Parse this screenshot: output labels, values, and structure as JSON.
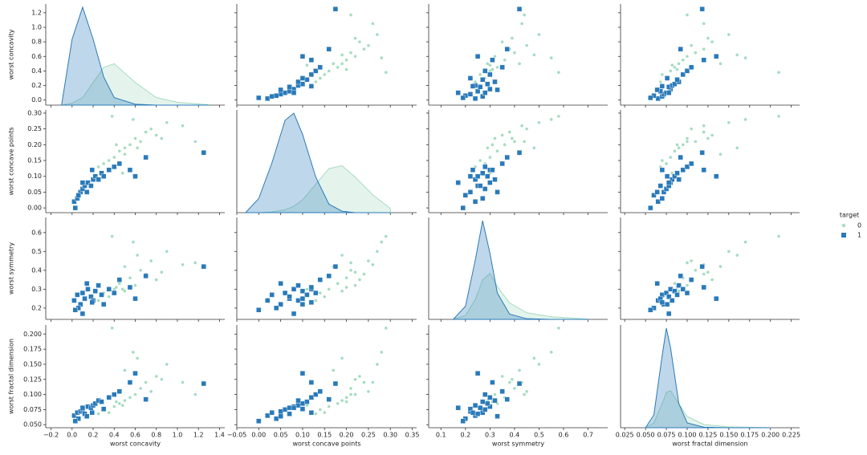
{
  "chart_data": {
    "type": "pairplot",
    "legend_title": "target",
    "legend_position": "right",
    "variables": [
      {
        "name": "worst concavity",
        "lim": [
          -0.25,
          1.45
        ],
        "ticks": [
          {
            "value": -0.2,
            "label": "−0.2"
          },
          {
            "value": 0,
            "label": "0.0"
          },
          0.2,
          0.4,
          0.6,
          0.8,
          {
            "value": 1,
            "label": "1.0"
          },
          1.2,
          1.4
        ],
        "yticks": [
          {
            "value": 0,
            "label": "0.0"
          },
          0.2,
          0.4,
          0.6,
          0.8,
          {
            "value": 1,
            "label": "1.0"
          },
          1.2
        ],
        "ylim": [
          -0.07,
          1.32
        ],
        "kde_x": [
          -0.1,
          0.0,
          0.1,
          0.2,
          0.3,
          0.4,
          0.6,
          0.8,
          1.0,
          1.3
        ]
      },
      {
        "name": "worst concave points",
        "lim": [
          -0.05,
          0.36
        ],
        "ticks": [
          {
            "value": -0.05,
            "label": "−0.05"
          },
          {
            "value": 0,
            "label": "0.00"
          },
          0.05,
          {
            "value": 0.1,
            "label": "0.10"
          },
          0.15,
          {
            "value": 0.2,
            "label": "0.20"
          },
          0.25,
          {
            "value": 0.3,
            "label": "0.30"
          },
          0.35
        ],
        "yticks": [
          {
            "value": 0,
            "label": "0.00"
          },
          0.05,
          {
            "value": 0.1,
            "label": "0.10"
          },
          0.15,
          {
            "value": 0.2,
            "label": "0.20"
          },
          0.25,
          {
            "value": 0.3,
            "label": "0.30"
          }
        ],
        "ylim": [
          -0.015,
          0.31
        ],
        "kde_x": [
          -0.03,
          0,
          0.03,
          0.06,
          0.08,
          0.1,
          0.13,
          0.16,
          0.19,
          0.22,
          0.26,
          0.3
        ]
      },
      {
        "name": "worst symmetry",
        "lim": [
          0.05,
          0.78
        ],
        "ticks": [
          0.1,
          0.2,
          0.3,
          0.4,
          0.5,
          0.6,
          0.7
        ],
        "yticks": [
          0.2,
          0.3,
          0.4,
          0.5,
          0.6
        ],
        "ylim": [
          0.14,
          0.68
        ],
        "kde_x": [
          0.15,
          0.2,
          0.24,
          0.27,
          0.3,
          0.33,
          0.38,
          0.45,
          0.55,
          0.7
        ]
      },
      {
        "name": "worst fractal dimension",
        "lim": [
          0.02,
          0.235
        ],
        "ticks": [
          0.025,
          {
            "value": 0.05,
            "label": "0.050"
          },
          0.075,
          {
            "value": 0.1,
            "label": "0.100"
          },
          0.125,
          {
            "value": 0.15,
            "label": "0.150"
          },
          0.175,
          {
            "value": 0.2,
            "label": "0.200"
          },
          0.225
        ],
        "yticks": [
          {
            "value": 0.05,
            "label": "0.050"
          },
          0.075,
          {
            "value": 0.1,
            "label": "0.100"
          },
          0.125,
          {
            "value": 0.15,
            "label": "0.150"
          },
          0.175,
          {
            "value": 0.2,
            "label": "0.200"
          }
        ],
        "ylim": [
          0.045,
          0.215
        ],
        "kde_x": [
          0.05,
          0.06,
          0.07,
          0.075,
          0.08,
          0.09,
          0.1,
          0.12,
          0.15,
          0.2
        ]
      }
    ],
    "series": [
      {
        "name": "0",
        "color": "#a6dcc0",
        "marker": "dot",
        "values": [
          [
            0.3,
            0.14,
            0.28,
            0.075
          ],
          [
            0.4,
            0.16,
            0.3,
            0.08
          ],
          [
            0.45,
            0.18,
            0.33,
            0.085
          ],
          [
            0.5,
            0.19,
            0.29,
            0.09
          ],
          [
            0.55,
            0.2,
            0.36,
            0.095
          ],
          [
            0.6,
            0.22,
            0.32,
            0.1
          ],
          [
            0.65,
            0.21,
            0.4,
            0.11
          ],
          [
            0.7,
            0.24,
            0.38,
            0.12
          ],
          [
            0.75,
            0.25,
            0.45,
            0.105
          ],
          [
            0.8,
            0.23,
            0.35,
            0.13
          ],
          [
            0.35,
            0.15,
            0.26,
            0.07
          ],
          [
            0.5,
            0.17,
            0.42,
            0.14
          ],
          [
            0.9,
            0.27,
            0.5,
            0.15
          ],
          [
            1.05,
            0.26,
            0.43,
            0.12
          ],
          [
            0.42,
            0.2,
            0.31,
            0.088
          ],
          [
            0.58,
            0.28,
            0.55,
            0.17
          ],
          [
            0.25,
            0.13,
            0.24,
            0.068
          ],
          [
            0.62,
            0.19,
            0.48,
            0.16
          ],
          [
            1.17,
            0.21,
            0.44,
            0.1
          ],
          [
            0.38,
            0.29,
            0.58,
            0.21
          ],
          [
            0.85,
            0.22,
            0.39,
            0.125
          ],
          [
            0.48,
            0.11,
            0.3,
            0.082
          ]
        ],
        "density": [
          [
            0,
            0.1,
            0.4,
            1.2,
            2.0,
            2.2,
            1.2,
            0.4,
            0.15,
            0.02
          ],
          [
            0,
            0,
            0.1,
            0.4,
            0.9,
            1.8,
            4,
            6.2,
            6.6,
            5,
            2.5,
            0.6
          ],
          [
            0,
            0.6,
            3,
            6,
            7,
            5,
            2.5,
            1,
            0.4,
            0.05
          ],
          [
            0,
            3,
            15,
            22,
            23,
            15,
            7,
            2,
            0.5,
            0.05
          ]
        ]
      },
      {
        "name": "1",
        "color": "#2a7ab9",
        "marker": "square",
        "values": [
          [
            0.02,
            0.02,
            0.24,
            0.065
          ],
          [
            0.05,
            0.03,
            0.27,
            0.07
          ],
          [
            0.08,
            0.05,
            0.22,
            0.072
          ],
          [
            0.1,
            0.06,
            0.28,
            0.075
          ],
          [
            0.12,
            0.07,
            0.25,
            0.068
          ],
          [
            0.15,
            0.08,
            0.3,
            0.08
          ],
          [
            0.18,
            0.07,
            0.26,
            0.078
          ],
          [
            0.2,
            0.09,
            0.24,
            0.082
          ],
          [
            0.22,
            0.1,
            0.29,
            0.085
          ],
          [
            0.25,
            0.09,
            0.32,
            0.09
          ],
          [
            0.28,
            0.11,
            0.27,
            0.088
          ],
          [
            0.3,
            0.1,
            0.22,
            0.076
          ],
          [
            0.35,
            0.12,
            0.3,
            0.095
          ],
          [
            0.4,
            0.13,
            0.28,
            0.1
          ],
          [
            0.06,
            0.04,
            0.2,
            0.06
          ],
          [
            0.14,
            0.05,
            0.33,
            0.064
          ],
          [
            0.03,
            0.0,
            0.19,
            0.056
          ],
          [
            0.45,
            0.14,
            0.35,
            0.105
          ],
          [
            0.55,
            0.12,
            0.31,
            0.12
          ],
          [
            0.7,
            0.16,
            0.37,
            0.092
          ],
          [
            1.25,
            0.175,
            0.42,
            0.118
          ],
          [
            0.6,
            0.1,
            0.25,
            0.135
          ],
          [
            0.1,
            0.08,
            0.17,
            0.078
          ],
          [
            0.19,
            0.12,
            0.23,
            0.07
          ]
        ],
        "density": [
          [
            0,
            3.5,
            5.2,
            3.5,
            1.5,
            0.4,
            0.05,
            0,
            0,
            0
          ],
          [
            0,
            2,
            7,
            13,
            14,
            11,
            5,
            1.2,
            0.2,
            0,
            0,
            0
          ],
          [
            0,
            2,
            9,
            15,
            10,
            4,
            0.8,
            0.1,
            0,
            0
          ],
          [
            0,
            8,
            45,
            62,
            50,
            15,
            3,
            0.3,
            0,
            0
          ]
        ]
      }
    ]
  }
}
